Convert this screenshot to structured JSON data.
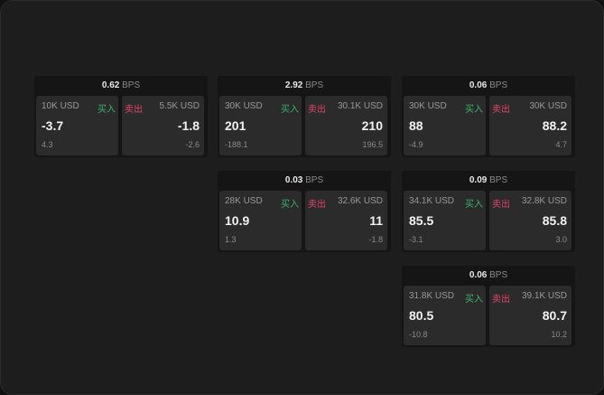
{
  "unit": "BPS",
  "buy_label": "买入",
  "sell_label": "卖出",
  "colors": {
    "buy": "#3bb36a",
    "sell": "#e0456d"
  },
  "cards": [
    {
      "bps": "0.62",
      "bid_size": "10K USD",
      "bid": "-3.7",
      "bid_chg": "4.3",
      "ask_size": "5.5K USD",
      "ask": "-1.8",
      "ask_chg": "-2.6"
    },
    {
      "bps": "2.92",
      "bid_size": "30K USD",
      "bid": "201",
      "bid_chg": "-188.1",
      "ask_size": "30.1K USD",
      "ask": "210",
      "ask_chg": "196.5"
    },
    {
      "bps": "0.06",
      "bid_size": "30K USD",
      "bid": "88",
      "bid_chg": "-4.9",
      "ask_size": "30K USD",
      "ask": "88.2",
      "ask_chg": "4.7"
    },
    {
      "bps": "0.03",
      "bid_size": "28K USD",
      "bid": "10.9",
      "bid_chg": "1.3",
      "ask_size": "32.6K USD",
      "ask": "11",
      "ask_chg": "-1.8"
    },
    {
      "bps": "0.09",
      "bid_size": "34.1K USD",
      "bid": "85.5",
      "bid_chg": "-3.1",
      "ask_size": "32.8K USD",
      "ask": "85.8",
      "ask_chg": "3.0"
    },
    {
      "bps": "0.06",
      "bid_size": "31.8K USD",
      "bid": "80.5",
      "bid_chg": "-10.8",
      "ask_size": "39.1K USD",
      "ask": "80.7",
      "ask_chg": "10.2"
    }
  ]
}
